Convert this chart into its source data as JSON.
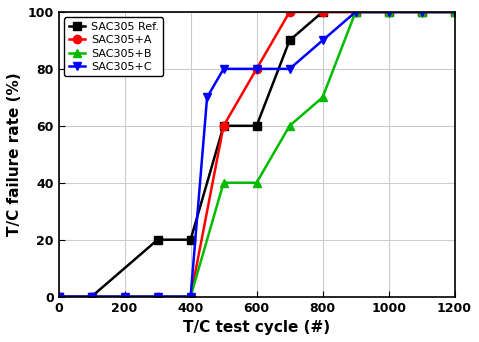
{
  "title": "",
  "xlabel": "T/C test cycle (#)",
  "ylabel": "T/C failure rate (%)",
  "xlim": [
    0,
    1200
  ],
  "ylim": [
    0,
    100
  ],
  "xticks": [
    0,
    200,
    400,
    600,
    800,
    1000,
    1200
  ],
  "yticks": [
    0,
    20,
    40,
    60,
    80,
    100
  ],
  "series": [
    {
      "label": "SAC305 Ref.",
      "color": "#000000",
      "marker": "s",
      "x": [
        0,
        100,
        300,
        400,
        500,
        600,
        700,
        800,
        900,
        1000,
        1100,
        1200
      ],
      "y": [
        0,
        0,
        20,
        20,
        60,
        60,
        90,
        100,
        100,
        100,
        100,
        100
      ]
    },
    {
      "label": "SAC305+A",
      "color": "#ff0000",
      "marker": "o",
      "x": [
        0,
        100,
        200,
        300,
        400,
        500,
        600,
        700,
        800,
        900,
        1000,
        1100,
        1200
      ],
      "y": [
        0,
        0,
        0,
        0,
        0,
        60,
        80,
        100,
        100,
        100,
        100,
        100,
        100
      ]
    },
    {
      "label": "SAC305+B",
      "color": "#00bb00",
      "marker": "^",
      "x": [
        0,
        100,
        200,
        300,
        400,
        500,
        600,
        700,
        800,
        900,
        1000,
        1100,
        1200
      ],
      "y": [
        0,
        0,
        0,
        0,
        0,
        40,
        40,
        60,
        70,
        100,
        100,
        100,
        100
      ]
    },
    {
      "label": "SAC305+C",
      "color": "#0000ff",
      "marker": "v",
      "x": [
        0,
        100,
        200,
        300,
        400,
        450,
        500,
        600,
        700,
        800,
        900,
        1000,
        1100,
        1200
      ],
      "y": [
        0,
        0,
        0,
        0,
        0,
        70,
        80,
        80,
        80,
        90,
        100,
        100,
        100,
        100
      ]
    }
  ],
  "legend_loc": "upper left",
  "grid": true,
  "figsize": [
    4.79,
    3.42
  ],
  "dpi": 100,
  "bg_color": "#ffffff",
  "plot_bg_color": "#ffffff",
  "grid_color": "#cccccc",
  "legend_fontsize": 8,
  "axis_labelsize": 11,
  "tick_labelsize": 9,
  "linewidth": 1.8,
  "markersize": 6
}
